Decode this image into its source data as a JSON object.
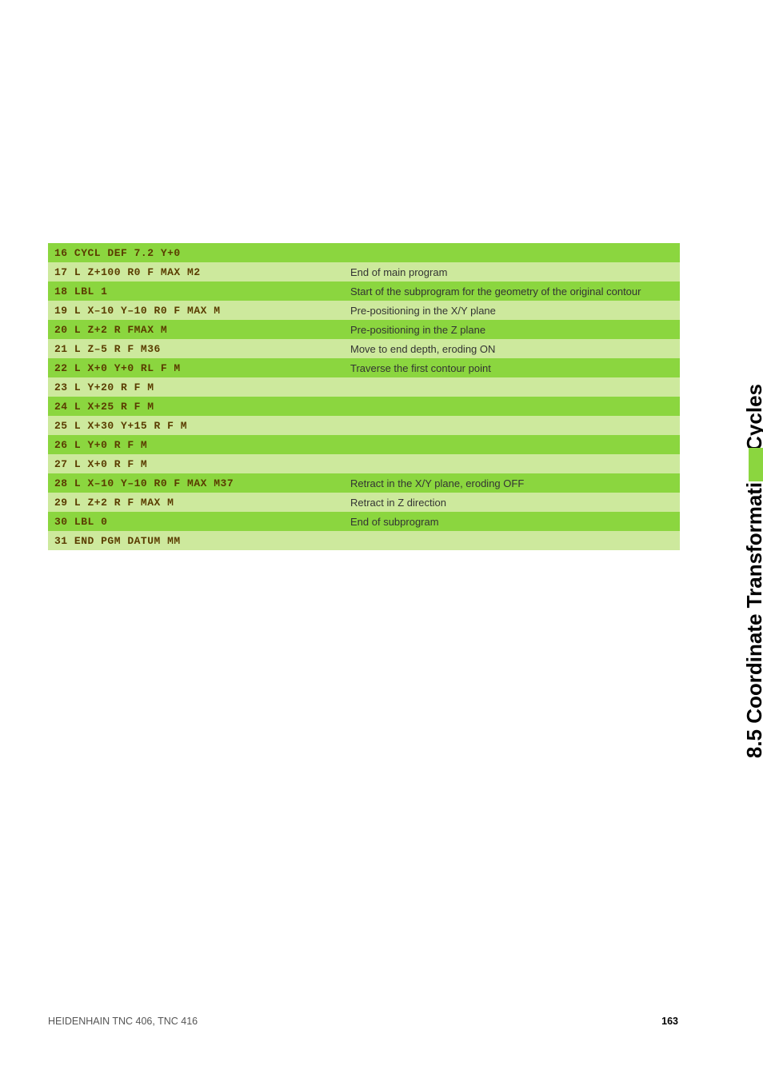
{
  "side_title": "8.5 Coordinate Transformation Cycles",
  "side_accent_color": "#8bd63f",
  "table": {
    "code_color": "#5a3c00",
    "row_dark_bg": "#8bd63f",
    "row_light_bg": "#cde99d",
    "code_font": "Courier New",
    "rows": [
      {
        "shade": "dark",
        "code": "16 CYCL DEF 7.2 Y+0",
        "desc": ""
      },
      {
        "shade": "light",
        "code": "17 L Z+100 R0 F MAX M2",
        "desc": "End of main program"
      },
      {
        "shade": "dark",
        "code": "18 LBL 1",
        "desc": "Start of the subprogram for the geometry of the original contour"
      },
      {
        "shade": "light",
        "code": "19 L X–10 Y–10 R0 F MAX M",
        "desc": "Pre-positioning in the X/Y plane"
      },
      {
        "shade": "dark",
        "code": "20 L Z+2 R FMAX M",
        "desc": "Pre-positioning in the Z plane"
      },
      {
        "shade": "light",
        "code": "21 L Z–5 R F M36",
        "desc": "Move to end depth, eroding ON"
      },
      {
        "shade": "dark",
        "code": "22 L X+0 Y+0 RL F M",
        "desc": "Traverse the first contour point"
      },
      {
        "shade": "light",
        "code": "23 L Y+20 R F M",
        "desc": ""
      },
      {
        "shade": "dark",
        "code": "24 L X+25 R F M",
        "desc": ""
      },
      {
        "shade": "light",
        "code": "25 L X+30 Y+15 R F M",
        "desc": ""
      },
      {
        "shade": "dark",
        "code": "26 L Y+0 R F M",
        "desc": ""
      },
      {
        "shade": "light",
        "code": "27 L X+0 R F M",
        "desc": ""
      },
      {
        "shade": "dark",
        "code": "28 L X–10 Y–10 R0 F MAX M37",
        "desc": "Retract in the X/Y plane, eroding OFF"
      },
      {
        "shade": "light",
        "code": "29 L Z+2 R F MAX M",
        "desc": "Retract in Z direction"
      },
      {
        "shade": "dark",
        "code": "30 LBL 0",
        "desc": "End of subprogram"
      },
      {
        "shade": "light",
        "code": "31 END PGM DATUM MM",
        "desc": ""
      }
    ]
  },
  "footer": {
    "left": "HEIDENHAIN TNC 406, TNC 416",
    "page_number": "163"
  }
}
